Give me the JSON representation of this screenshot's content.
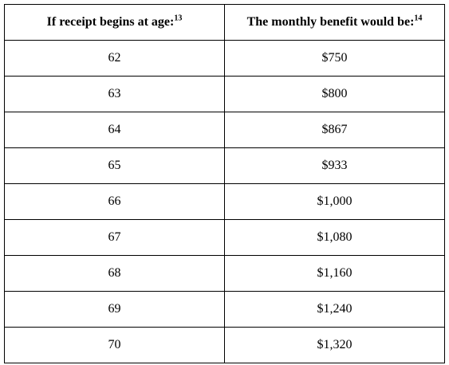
{
  "table": {
    "headers": [
      {
        "text": "If receipt begins at age:",
        "footnote": "13"
      },
      {
        "text": "The monthly benefit would be:",
        "footnote": "14"
      }
    ],
    "rows": [
      {
        "age": "62",
        "benefit": "$750"
      },
      {
        "age": "63",
        "benefit": "$800"
      },
      {
        "age": "64",
        "benefit": "$867"
      },
      {
        "age": "65",
        "benefit": "$933"
      },
      {
        "age": "66",
        "benefit": "$1,000"
      },
      {
        "age": "67",
        "benefit": "$1,080"
      },
      {
        "age": "68",
        "benefit": "$1,160"
      },
      {
        "age": "69",
        "benefit": "$1,240"
      },
      {
        "age": "70",
        "benefit": "$1,320"
      }
    ]
  }
}
